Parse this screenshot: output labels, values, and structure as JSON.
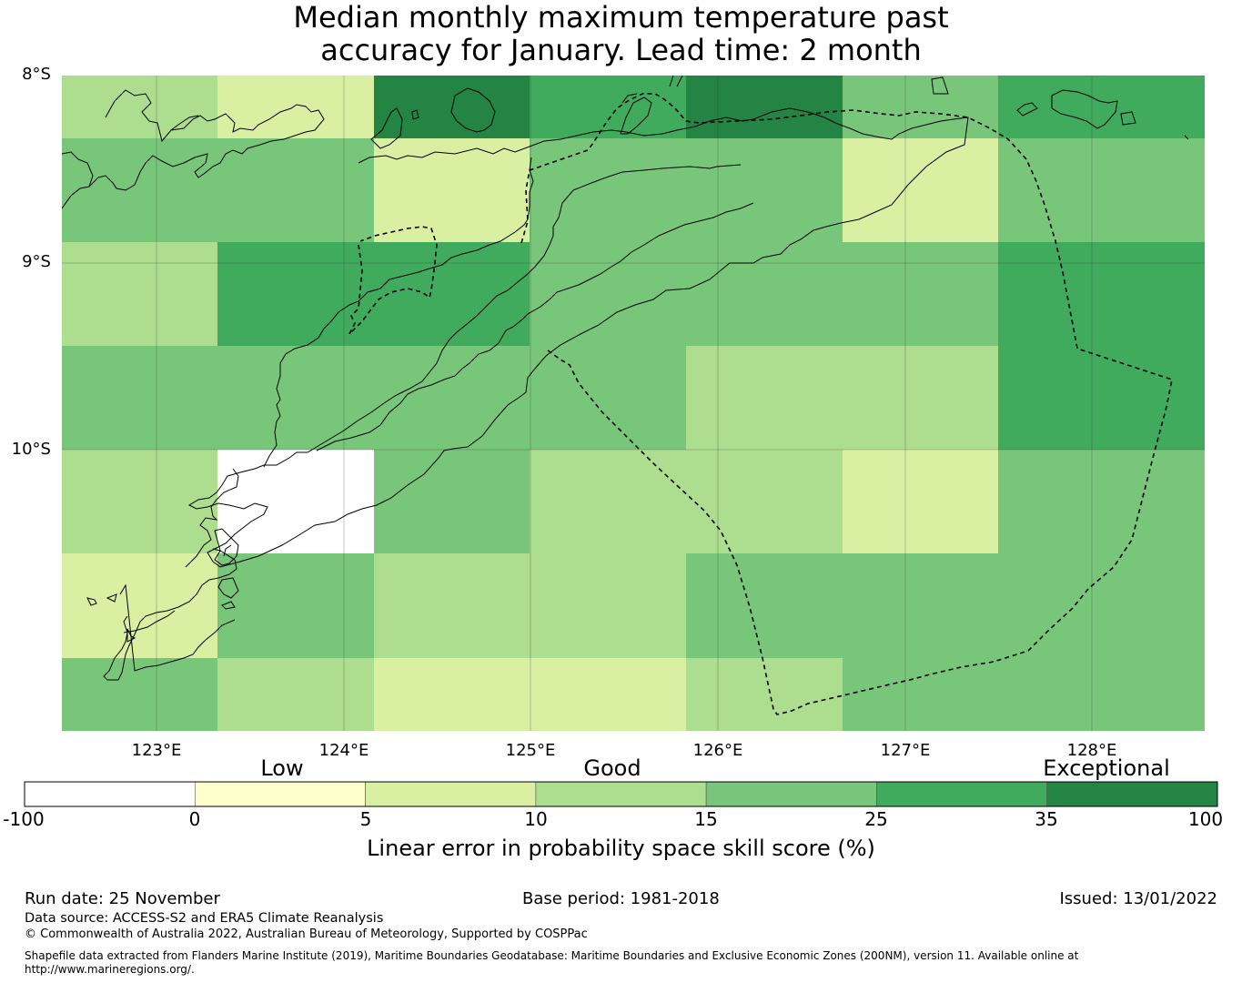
{
  "title": {
    "line1": "Median monthly maximum temperature past",
    "line2": "accuracy for January. Lead time: 2 month"
  },
  "map": {
    "lat_labels": [
      "8°S",
      "9°S",
      "10°S"
    ],
    "lon_labels": [
      "123°E",
      "124°E",
      "125°E",
      "126°E",
      "127°E",
      "128°E"
    ],
    "lon_range": [
      122.5,
      128.6
    ],
    "lat_range": [
      -8.0,
      -11.5
    ],
    "grid_cols": 7,
    "grid_rows": 7,
    "cell_classes": [
      [
        3,
        2,
        6,
        5,
        6,
        4,
        5
      ],
      [
        4,
        4,
        2,
        4,
        4,
        2,
        4
      ],
      [
        3,
        5,
        5,
        4,
        4,
        4,
        5
      ],
      [
        4,
        4,
        4,
        4,
        3,
        3,
        5
      ],
      [
        3,
        0,
        4,
        3,
        3,
        2,
        4
      ],
      [
        2,
        4,
        3,
        3,
        4,
        4,
        4
      ],
      [
        4,
        3,
        2,
        2,
        3,
        4,
        4
      ]
    ]
  },
  "colorbar": {
    "categories": [
      "Low",
      "Good",
      "Exceptional"
    ],
    "ticks": [
      "-100",
      "0",
      "5",
      "10",
      "15",
      "25",
      "35",
      "100"
    ],
    "colors": [
      "#ffffff",
      "#ffffcc",
      "#d9f0a3",
      "#addd8e",
      "#78c679",
      "#41ab5d",
      "#238443"
    ],
    "label": "Linear error in probability space skill score (%)"
  },
  "footer": {
    "run_date": "Run date: 25 November",
    "base_period": "Base period: 1981-2018",
    "issued": "Issued: 13/01/2022",
    "data_source": "Data source: ACCESS-S2 and ERA5 Climate Reanalysis",
    "copyright": "© Commonwealth of Australia 2022, Australian Bureau of Meteorology, Supported by COSPPac",
    "shapefile_1": "Shapefile data extracted from Flanders Marine Institute (2019), Maritime Boundaries Geodatabase: Maritime Boundaries and Exclusive Economic Zones (200NM), version 11. Available online at",
    "shapefile_2": "http://www.marineregions.org/."
  }
}
